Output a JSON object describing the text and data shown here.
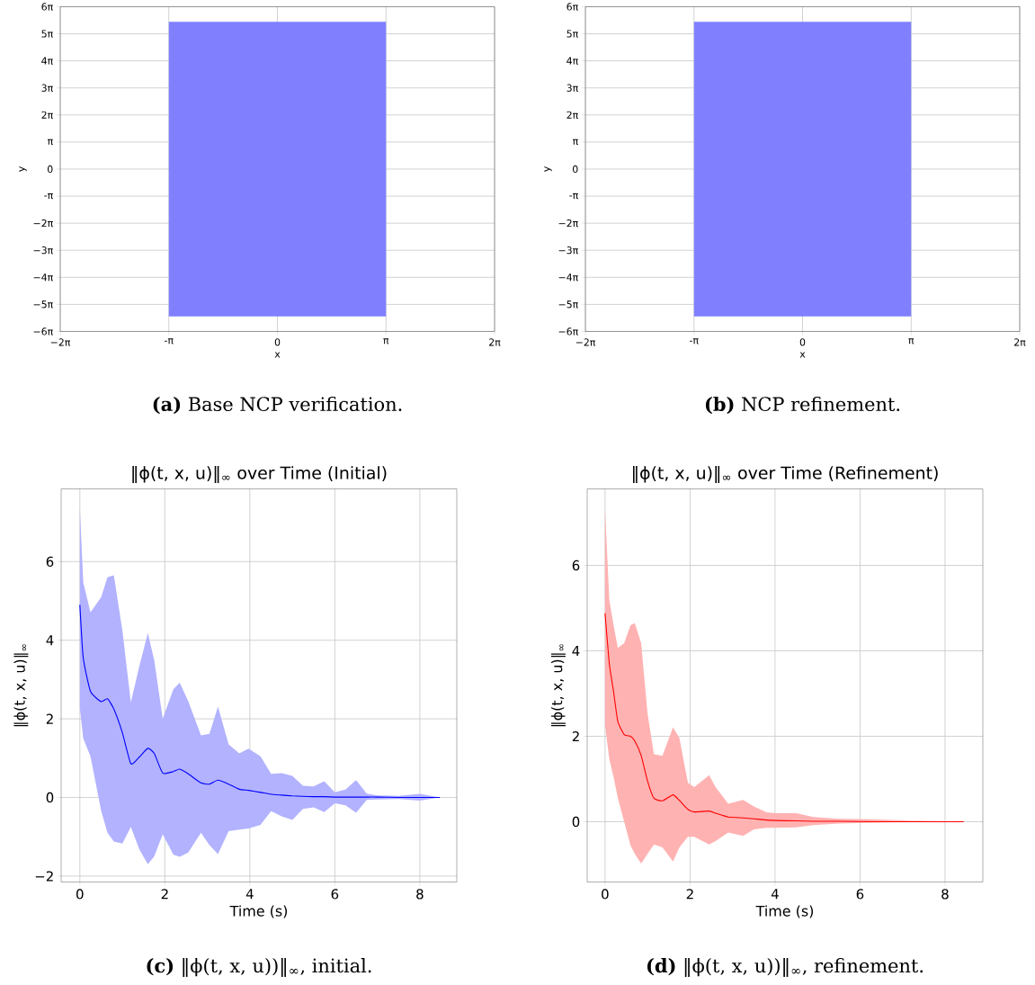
{
  "chart_data": [
    {
      "type": "area",
      "xlabel": "x",
      "ylabel": "y",
      "xlim": [
        -6.2832,
        6.2832
      ],
      "ylim": [
        -18.8496,
        18.8496
      ],
      "xticks": [
        {
          "value": -6.2832,
          "label": "−2π"
        },
        {
          "value": -3.1416,
          "label": "-π"
        },
        0,
        {
          "value": 3.1416,
          "label": "π"
        },
        {
          "value": 6.2832,
          "label": "2π"
        }
      ],
      "yticks": [
        {
          "value": -18.8496,
          "label": "−6π"
        },
        {
          "value": -15.708,
          "label": "−5π"
        },
        {
          "value": -12.5664,
          "label": "−4π"
        },
        {
          "value": -9.4248,
          "label": "−3π"
        },
        {
          "value": -6.2832,
          "label": "−2π"
        },
        {
          "value": -3.1416,
          "label": "-π"
        },
        0,
        {
          "value": 3.1416,
          "label": "π"
        },
        {
          "value": 6.2832,
          "label": "2π"
        },
        {
          "value": 9.4248,
          "label": "3π"
        },
        {
          "value": 12.5664,
          "label": "4π"
        },
        {
          "value": 15.708,
          "label": "5π"
        },
        {
          "value": 18.8496,
          "label": "6π"
        }
      ],
      "grid": true,
      "series": [
        {
          "color": "#8080ff",
          "x": [
            -3.1416,
            3.1416
          ],
          "values": [
            17.1,
            17.1
          ]
        },
        {
          "color": "#8080ff",
          "x": [
            -3.1416,
            3.1416
          ],
          "values": [
            -17.1,
            -17.1
          ]
        }
      ],
      "annotations": [
        "**(a)** Base NCP verification."
      ]
    },
    {
      "type": "area",
      "xlabel": "x",
      "ylabel": "y",
      "xlim": [
        -6.2832,
        6.2832
      ],
      "ylim": [
        -18.8496,
        18.8496
      ],
      "xticks": [
        {
          "value": -6.2832,
          "label": "−2π"
        },
        {
          "value": -3.1416,
          "label": "-π"
        },
        0,
        {
          "value": 3.1416,
          "label": "π"
        },
        {
          "value": 6.2832,
          "label": "2π"
        }
      ],
      "yticks": [
        {
          "value": -18.8496,
          "label": "−6π"
        },
        {
          "value": -15.708,
          "label": "−5π"
        },
        {
          "value": -12.5664,
          "label": "−4π"
        },
        {
          "value": -9.4248,
          "label": "−3π"
        },
        {
          "value": -6.2832,
          "label": "−2π"
        },
        {
          "value": -3.1416,
          "label": "-π"
        },
        0,
        {
          "value": 3.1416,
          "label": "π"
        },
        {
          "value": 6.2832,
          "label": "2π"
        },
        {
          "value": 9.4248,
          "label": "3π"
        },
        {
          "value": 12.5664,
          "label": "4π"
        },
        {
          "value": 15.708,
          "label": "5π"
        },
        {
          "value": 18.8496,
          "label": "6π"
        }
      ],
      "grid": true,
      "series": [
        {
          "color": "#8080ff",
          "x": [
            -3.1416,
            3.1416
          ],
          "values": [
            17.1,
            17.1
          ]
        },
        {
          "color": "#8080ff",
          "x": [
            -3.1416,
            3.1416
          ],
          "values": [
            -17.1,
            -17.1
          ]
        }
      ],
      "annotations": [
        "**(b)** NCP refinement."
      ]
    },
    {
      "type": "line",
      "title": "‖ϕ(t, x, u)‖$_{∞}$ over Time (Initial)",
      "xlabel": "Time (s)",
      "ylabel": "‖ϕ(t, x, u)‖$_{∞}$",
      "xlim": [
        -0.44,
        8.87
      ],
      "ylim": [
        -2.15,
        7.85
      ],
      "xticks": [
        0,
        2,
        4,
        6,
        8
      ],
      "yticks": [
        {
          "value": -2,
          "label": "−2"
        },
        0,
        2,
        4,
        6
      ],
      "grid": true,
      "series": [
        {
          "color": "#0000ff",
          "x": [
            0,
            0.08,
            0.25,
            0.5,
            0.65,
            0.8,
            1.0,
            1.2,
            1.4,
            1.6,
            1.75,
            1.95,
            2.2,
            2.35,
            2.55,
            2.85,
            3.05,
            3.25,
            3.5,
            3.75,
            3.97,
            4.25,
            4.5,
            4.75,
            5.0,
            5.25,
            5.5,
            5.75,
            6.0,
            6.25,
            6.5,
            6.75,
            7.0,
            7.5,
            8.0,
            8.47
          ],
          "values": [
            4.9,
            3.55,
            2.7,
            2.44,
            2.51,
            2.25,
            1.65,
            0.86,
            1.03,
            1.25,
            1.12,
            0.62,
            0.66,
            0.72,
            0.6,
            0.37,
            0.34,
            0.44,
            0.34,
            0.21,
            0.18,
            0.13,
            0.08,
            0.06,
            0.04,
            0.03,
            0.02,
            0.02,
            0.01,
            0.01,
            0.01,
            0.01,
            0.01,
            0,
            0,
            0
          ],
          "upper": [
            7.38,
            5.47,
            4.71,
            5.09,
            5.6,
            5.65,
            4.25,
            2.42,
            3.34,
            4.18,
            3.49,
            2.0,
            2.75,
            2.92,
            2.45,
            1.58,
            1.62,
            2.31,
            1.35,
            1.12,
            1.24,
            1.05,
            0.6,
            0.62,
            0.55,
            0.3,
            0.28,
            0.41,
            0.13,
            0.2,
            0.44,
            0.1,
            0.05,
            0.04,
            0.09,
            0
          ],
          "lower": [
            2.27,
            1.5,
            1.05,
            -0.33,
            -0.9,
            -1.12,
            -1.17,
            -0.75,
            -1.32,
            -1.7,
            -1.5,
            -0.94,
            -1.45,
            -1.51,
            -1.4,
            -0.9,
            -1.21,
            -1.44,
            -0.86,
            -0.82,
            -0.79,
            -0.7,
            -0.35,
            -0.48,
            -0.57,
            -0.29,
            -0.25,
            -0.37,
            -0.15,
            -0.2,
            -0.39,
            -0.06,
            -0.05,
            -0.04,
            -0.08,
            0
          ]
        }
      ],
      "annotations": [
        "**(c)** ‖ϕ(t, x, u))‖$_{∞}$, initial."
      ]
    },
    {
      "type": "line",
      "title": "‖ϕ(t, x, u)‖$_{∞}$ over Time (Refinement)",
      "xlabel": "Time (s)",
      "ylabel": "‖ϕ(t, x, u)‖$_{∞}$",
      "xlim": [
        -0.42,
        8.89
      ],
      "ylim": [
        -1.41,
        7.79
      ],
      "xticks": [
        0,
        2,
        4,
        6,
        8
      ],
      "yticks": [
        0,
        2,
        4,
        6
      ],
      "grid": true,
      "series": [
        {
          "color": "#ff0000",
          "x": [
            0,
            0.1,
            0.2,
            0.3,
            0.45,
            0.6,
            0.7,
            0.85,
            1.0,
            1.15,
            1.35,
            1.6,
            1.75,
            1.95,
            2.1,
            2.45,
            2.6,
            2.9,
            3.25,
            3.5,
            3.8,
            4.0,
            4.5,
            4.9,
            5.5,
            6.3,
            7.0,
            8.44
          ],
          "values": [
            4.88,
            3.7,
            3.05,
            2.35,
            2.04,
            2.0,
            1.89,
            1.55,
            0.95,
            0.55,
            0.49,
            0.63,
            0.5,
            0.29,
            0.23,
            0.25,
            0.2,
            0.11,
            0.09,
            0.07,
            0.04,
            0.03,
            0.02,
            0.01,
            0.01,
            0,
            0,
            0
          ],
          "upper": [
            7.33,
            5.19,
            4.6,
            4.07,
            4.18,
            4.6,
            4.65,
            4.18,
            2.53,
            1.58,
            1.54,
            2.21,
            1.96,
            0.91,
            0.81,
            1.09,
            0.81,
            0.42,
            0.51,
            0.36,
            0.22,
            0.2,
            0.2,
            0.11,
            0.07,
            0.06,
            0.03,
            0
          ],
          "lower": [
            2.25,
            1.47,
            1.05,
            0.56,
            0.0,
            -0.56,
            -0.75,
            -0.98,
            -0.75,
            -0.53,
            -0.6,
            -0.93,
            -0.6,
            -0.35,
            -0.35,
            -0.53,
            -0.45,
            -0.25,
            -0.33,
            -0.18,
            -0.14,
            -0.14,
            -0.13,
            -0.08,
            -0.04,
            -0.02,
            -0.01,
            0
          ]
        }
      ],
      "annotations": [
        "**(d)** ‖ϕ(t, x, u))‖$_{∞}$, refinement."
      ]
    }
  ]
}
